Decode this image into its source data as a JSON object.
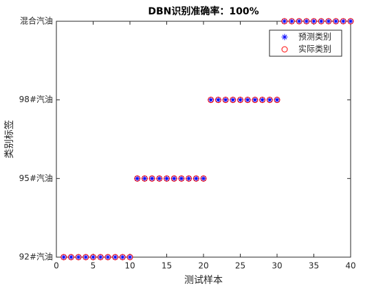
{
  "chart_data": {
    "type": "scatter",
    "title": "DBN识别准确率：100%",
    "xlabel": "测试样本",
    "ylabel": "类别标签",
    "x": [
      1,
      2,
      3,
      4,
      5,
      6,
      7,
      8,
      9,
      10,
      11,
      12,
      13,
      14,
      15,
      16,
      17,
      18,
      19,
      20,
      21,
      22,
      23,
      24,
      25,
      26,
      27,
      28,
      29,
      30,
      31,
      32,
      33,
      34,
      35,
      36,
      37,
      38,
      39,
      40
    ],
    "series": [
      {
        "name": "预测类别",
        "color": "#0000ff",
        "marker": "asterisk",
        "values": [
          1,
          1,
          1,
          1,
          1,
          1,
          1,
          1,
          1,
          1,
          2,
          2,
          2,
          2,
          2,
          2,
          2,
          2,
          2,
          2,
          3,
          3,
          3,
          3,
          3,
          3,
          3,
          3,
          3,
          3,
          4,
          4,
          4,
          4,
          4,
          4,
          4,
          4,
          4,
          4
        ]
      },
      {
        "name": "实际类别",
        "color": "#ff0000",
        "marker": "circle",
        "values": [
          1,
          1,
          1,
          1,
          1,
          1,
          1,
          1,
          1,
          1,
          2,
          2,
          2,
          2,
          2,
          2,
          2,
          2,
          2,
          2,
          3,
          3,
          3,
          3,
          3,
          3,
          3,
          3,
          3,
          3,
          4,
          4,
          4,
          4,
          4,
          4,
          4,
          4,
          4,
          4
        ]
      }
    ],
    "xlim": [
      0,
      40
    ],
    "xticks": [
      0,
      5,
      10,
      15,
      20,
      25,
      30,
      35,
      40
    ],
    "ylim": [
      1,
      4
    ],
    "yticks": [
      {
        "value": 1,
        "label": "92#汽油"
      },
      {
        "value": 2,
        "label": "95#汽油"
      },
      {
        "value": 3,
        "label": "98#汽油"
      },
      {
        "value": 4,
        "label": "混合汽油"
      }
    ],
    "legend": "northeast",
    "grid": false
  }
}
